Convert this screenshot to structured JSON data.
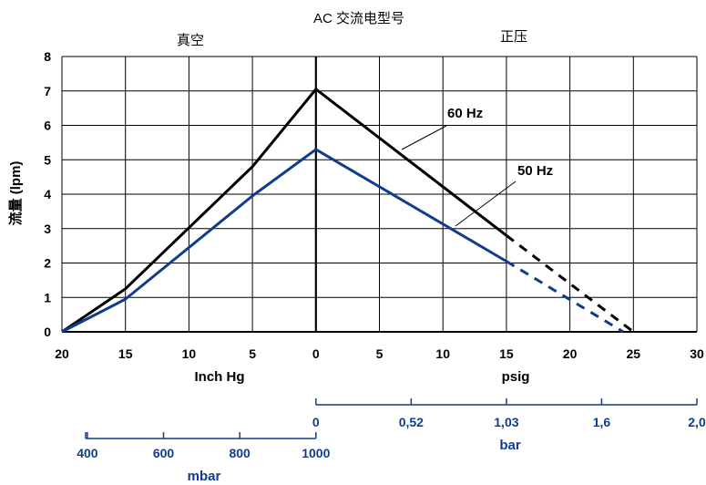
{
  "chart_data": {
    "type": "line",
    "title": "AC 交流电型号",
    "regions": {
      "left": "真空",
      "right": "正压"
    },
    "ylabel": "流量 (lpm)",
    "ylim": [
      0,
      8
    ],
    "yticks": [
      "0",
      "1",
      "2",
      "3",
      "4",
      "5",
      "6",
      "7",
      "8"
    ],
    "xlim": [
      -20,
      30
    ],
    "xticks": [
      {
        "pos": -20,
        "label": "20"
      },
      {
        "pos": -15,
        "label": "15"
      },
      {
        "pos": -10,
        "label": "10"
      },
      {
        "pos": -5,
        "label": "5"
      },
      {
        "pos": 0,
        "label": "0"
      },
      {
        "pos": 5,
        "label": "5"
      },
      {
        "pos": 10,
        "label": "10"
      },
      {
        "pos": 15,
        "label": "15"
      },
      {
        "pos": 20,
        "label": "20"
      },
      {
        "pos": 25,
        "label": "25"
      },
      {
        "pos": 30,
        "label": "30"
      }
    ],
    "xlabel_left": "Inch Hg",
    "xlabel_right": "psig",
    "grid": true,
    "series": [
      {
        "name": "60 Hz",
        "color": "#000000",
        "solid": [
          {
            "x": -20,
            "y": 0
          },
          {
            "x": -15,
            "y": 1.25
          },
          {
            "x": -5,
            "y": 4.8
          },
          {
            "x": 0,
            "y": 7.05
          },
          {
            "x": 15,
            "y": 2.8
          }
        ],
        "dashed": [
          {
            "x": 15,
            "y": 2.8
          },
          {
            "x": 25,
            "y": 0
          }
        ]
      },
      {
        "name": "50 Hz",
        "color": "#0f3d8c",
        "solid": [
          {
            "x": -20,
            "y": 0
          },
          {
            "x": -15,
            "y": 0.95
          },
          {
            "x": -5,
            "y": 3.95
          },
          {
            "x": 0,
            "y": 5.3
          },
          {
            "x": 15,
            "y": 2.05
          }
        ],
        "dashed": [
          {
            "x": 15,
            "y": 2.05
          },
          {
            "x": 24.2,
            "y": 0
          }
        ]
      }
    ],
    "secondary_axes": {
      "bar": {
        "label": "bar",
        "ticks": [
          {
            "pos": 0,
            "label": "0"
          },
          {
            "pos": 7.5,
            "label": "0,52"
          },
          {
            "pos": 15,
            "label": "1,03"
          },
          {
            "pos": 22.5,
            "label": "1,6"
          },
          {
            "pos": 30,
            "label": "2,0"
          }
        ]
      },
      "mbar": {
        "label": "mbar",
        "ticks": [
          {
            "pos": -18,
            "label": "400"
          },
          {
            "pos": -12,
            "label": "600"
          },
          {
            "pos": -6,
            "label": "800"
          },
          {
            "pos": 0,
            "label": "1000"
          }
        ]
      }
    }
  }
}
